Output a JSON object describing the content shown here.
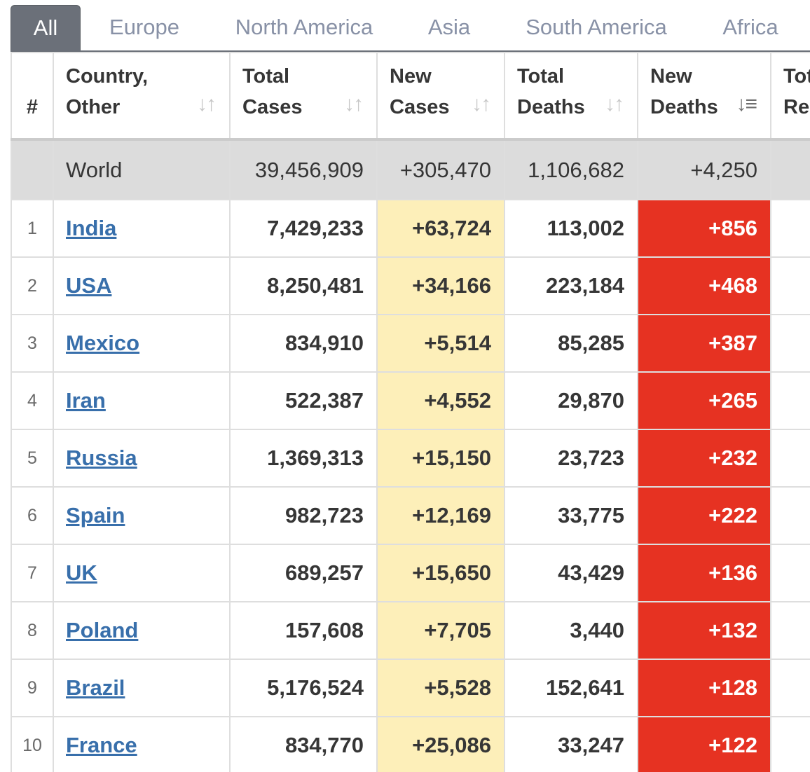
{
  "tabs": [
    "All",
    "Europe",
    "North America",
    "Asia",
    "South America",
    "Africa"
  ],
  "headers": {
    "rank": "#",
    "country": "Country, Other",
    "total_cases": "Total Cases",
    "new_cases": "New Cases",
    "total_deaths": "Total Deaths",
    "new_deaths": "New Deaths",
    "total_recovered": "Tot Re"
  },
  "world": {
    "country": "World",
    "total_cases": "39,456,909",
    "new_cases": "+305,470",
    "total_deaths": "1,106,682",
    "new_deaths": "+4,250"
  },
  "rows": [
    {
      "rank": "1",
      "country": "India",
      "total_cases": "7,429,233",
      "new_cases": "+63,724",
      "total_deaths": "113,002",
      "new_deaths": "+856"
    },
    {
      "rank": "2",
      "country": "USA",
      "total_cases": "8,250,481",
      "new_cases": "+34,166",
      "total_deaths": "223,184",
      "new_deaths": "+468"
    },
    {
      "rank": "3",
      "country": "Mexico",
      "total_cases": "834,910",
      "new_cases": "+5,514",
      "total_deaths": "85,285",
      "new_deaths": "+387"
    },
    {
      "rank": "4",
      "country": "Iran",
      "total_cases": "522,387",
      "new_cases": "+4,552",
      "total_deaths": "29,870",
      "new_deaths": "+265"
    },
    {
      "rank": "5",
      "country": "Russia",
      "total_cases": "1,369,313",
      "new_cases": "+15,150",
      "total_deaths": "23,723",
      "new_deaths": "+232"
    },
    {
      "rank": "6",
      "country": "Spain",
      "total_cases": "982,723",
      "new_cases": "+12,169",
      "total_deaths": "33,775",
      "new_deaths": "+222"
    },
    {
      "rank": "7",
      "country": "UK",
      "total_cases": "689,257",
      "new_cases": "+15,650",
      "total_deaths": "43,429",
      "new_deaths": "+136"
    },
    {
      "rank": "8",
      "country": "Poland",
      "total_cases": "157,608",
      "new_cases": "+7,705",
      "total_deaths": "3,440",
      "new_deaths": "+132"
    },
    {
      "rank": "9",
      "country": "Brazil",
      "total_cases": "5,176,524",
      "new_cases": "+5,528",
      "total_deaths": "152,641",
      "new_deaths": "+128"
    },
    {
      "rank": "10",
      "country": "France",
      "total_cases": "834,770",
      "new_cases": "+25,086",
      "total_deaths": "33,247",
      "new_deaths": "+122"
    }
  ],
  "colors": {
    "new_cases_bg": "#fdefb9",
    "new_deaths_bg": "#e63222",
    "link": "#386fab",
    "active_tab": "#6b7079"
  },
  "icons": {
    "sort": "sort-arrows-icon",
    "sort_active": "sort-desc-icon"
  }
}
